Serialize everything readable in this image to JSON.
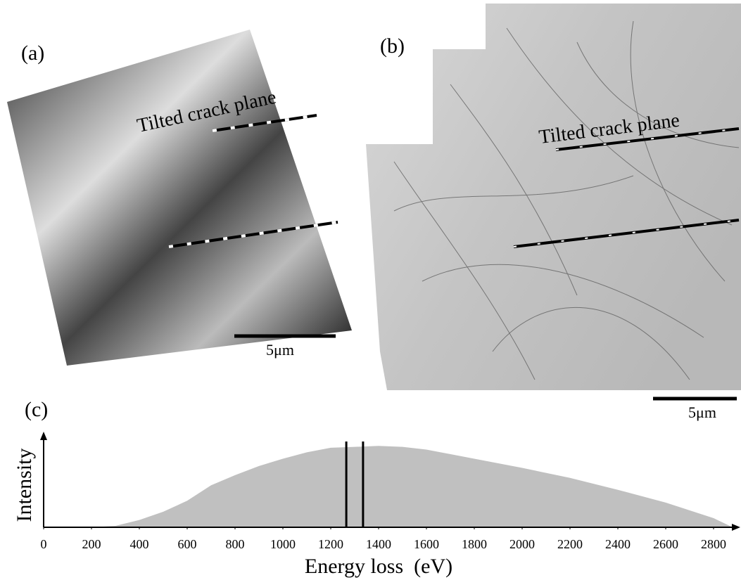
{
  "panels": [
    {
      "label": "(a)",
      "annotation": "Tilted crack plane",
      "scale_bar": "5μm"
    },
    {
      "label": "(b)",
      "annotation": "Tilted crack plane",
      "scale_bar": "5μm"
    }
  ],
  "chart_data": {
    "type": "area",
    "label": "(c)",
    "x_label": "Energy loss  (eV)",
    "y_label": "Intensity",
    "x": [
      0,
      100,
      200,
      300,
      400,
      500,
      600,
      700,
      800,
      900,
      1000,
      1100,
      1200,
      1300,
      1400,
      1500,
      1600,
      1800,
      2000,
      2200,
      2400,
      2600,
      2800,
      2880
    ],
    "values": [
      0,
      0,
      0,
      0.015,
      0.08,
      0.17,
      0.29,
      0.46,
      0.57,
      0.67,
      0.75,
      0.82,
      0.87,
      0.88,
      0.89,
      0.88,
      0.85,
      0.75,
      0.65,
      0.54,
      0.41,
      0.27,
      0.1,
      0
    ],
    "color": "#c0c0c0",
    "vertical_lines": [
      1265,
      1335
    ],
    "xlim": [
      0,
      2900
    ],
    "ylim": [
      0,
      1
    ],
    "xticks": [
      0,
      200,
      400,
      600,
      800,
      1000,
      1200,
      1400,
      1600,
      1800,
      2000,
      2200,
      2400,
      2600,
      2800
    ]
  }
}
